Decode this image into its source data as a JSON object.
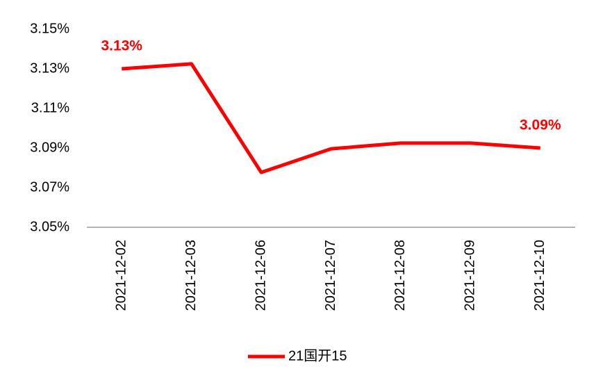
{
  "chart_data": {
    "type": "line",
    "categories": [
      "2021-12-02",
      "2021-12-03",
      "2021-12-06",
      "2021-12-07",
      "2021-12-08",
      "2021-12-09",
      "2021-12-10"
    ],
    "series": [
      {
        "name": "21国开15",
        "color": "#ff0000",
        "values": [
          3.13,
          3.1325,
          3.0777,
          3.0896,
          3.0925,
          3.0925,
          3.09
        ],
        "value_labels": [
          "3.13%",
          null,
          null,
          null,
          null,
          null,
          "3.09%"
        ]
      }
    ],
    "ylim": [
      3.05,
      3.15
    ],
    "yticks": [
      {
        "value": 3.05,
        "label": "3.05%"
      },
      {
        "value": 3.07,
        "label": "3.07%"
      },
      {
        "value": 3.09,
        "label": "3.09%"
      },
      {
        "value": 3.11,
        "label": "3.11%"
      },
      {
        "value": 3.13,
        "label": "3.13%"
      },
      {
        "value": 3.15,
        "label": "3.15%"
      }
    ],
    "grid": false,
    "legend": "bottom"
  }
}
